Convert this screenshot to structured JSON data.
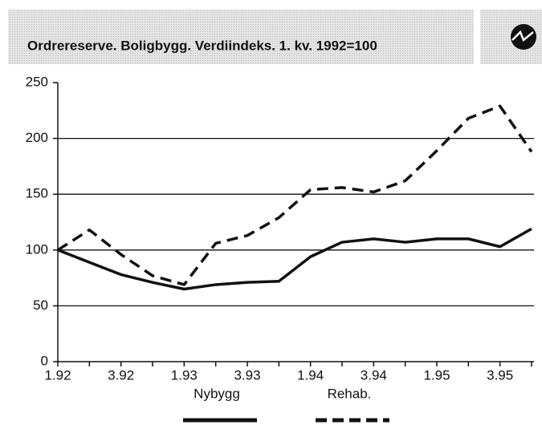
{
  "chart_data": {
    "type": "line",
    "title": "Ordrereserve. Boligbygg. Verdiindeks. 1. kv. 1992=100",
    "categories": [
      "1.92",
      null,
      "3.92",
      null,
      "1.93",
      null,
      "3.93",
      null,
      "1.94",
      null,
      "3.94",
      null,
      "1.95",
      null,
      "3.95",
      null
    ],
    "series": [
      {
        "name": "Nybygg",
        "color": "#111111",
        "line_style": "solid",
        "values": [
          100,
          89,
          78,
          71,
          65,
          69,
          71,
          72,
          94,
          107,
          110,
          107,
          110,
          110,
          103,
          119
        ]
      },
      {
        "name": "Rehab.",
        "color": "#111111",
        "line_style": "dashed",
        "values": [
          100,
          118,
          96,
          77,
          69,
          106,
          113,
          129,
          154,
          156,
          152,
          162,
          189,
          218,
          229,
          188
        ]
      }
    ],
    "ylim": [
      0,
      250
    ],
    "yticks": [
      0,
      50,
      100,
      150,
      200,
      250
    ],
    "grid": true,
    "legend": "bottom"
  }
}
